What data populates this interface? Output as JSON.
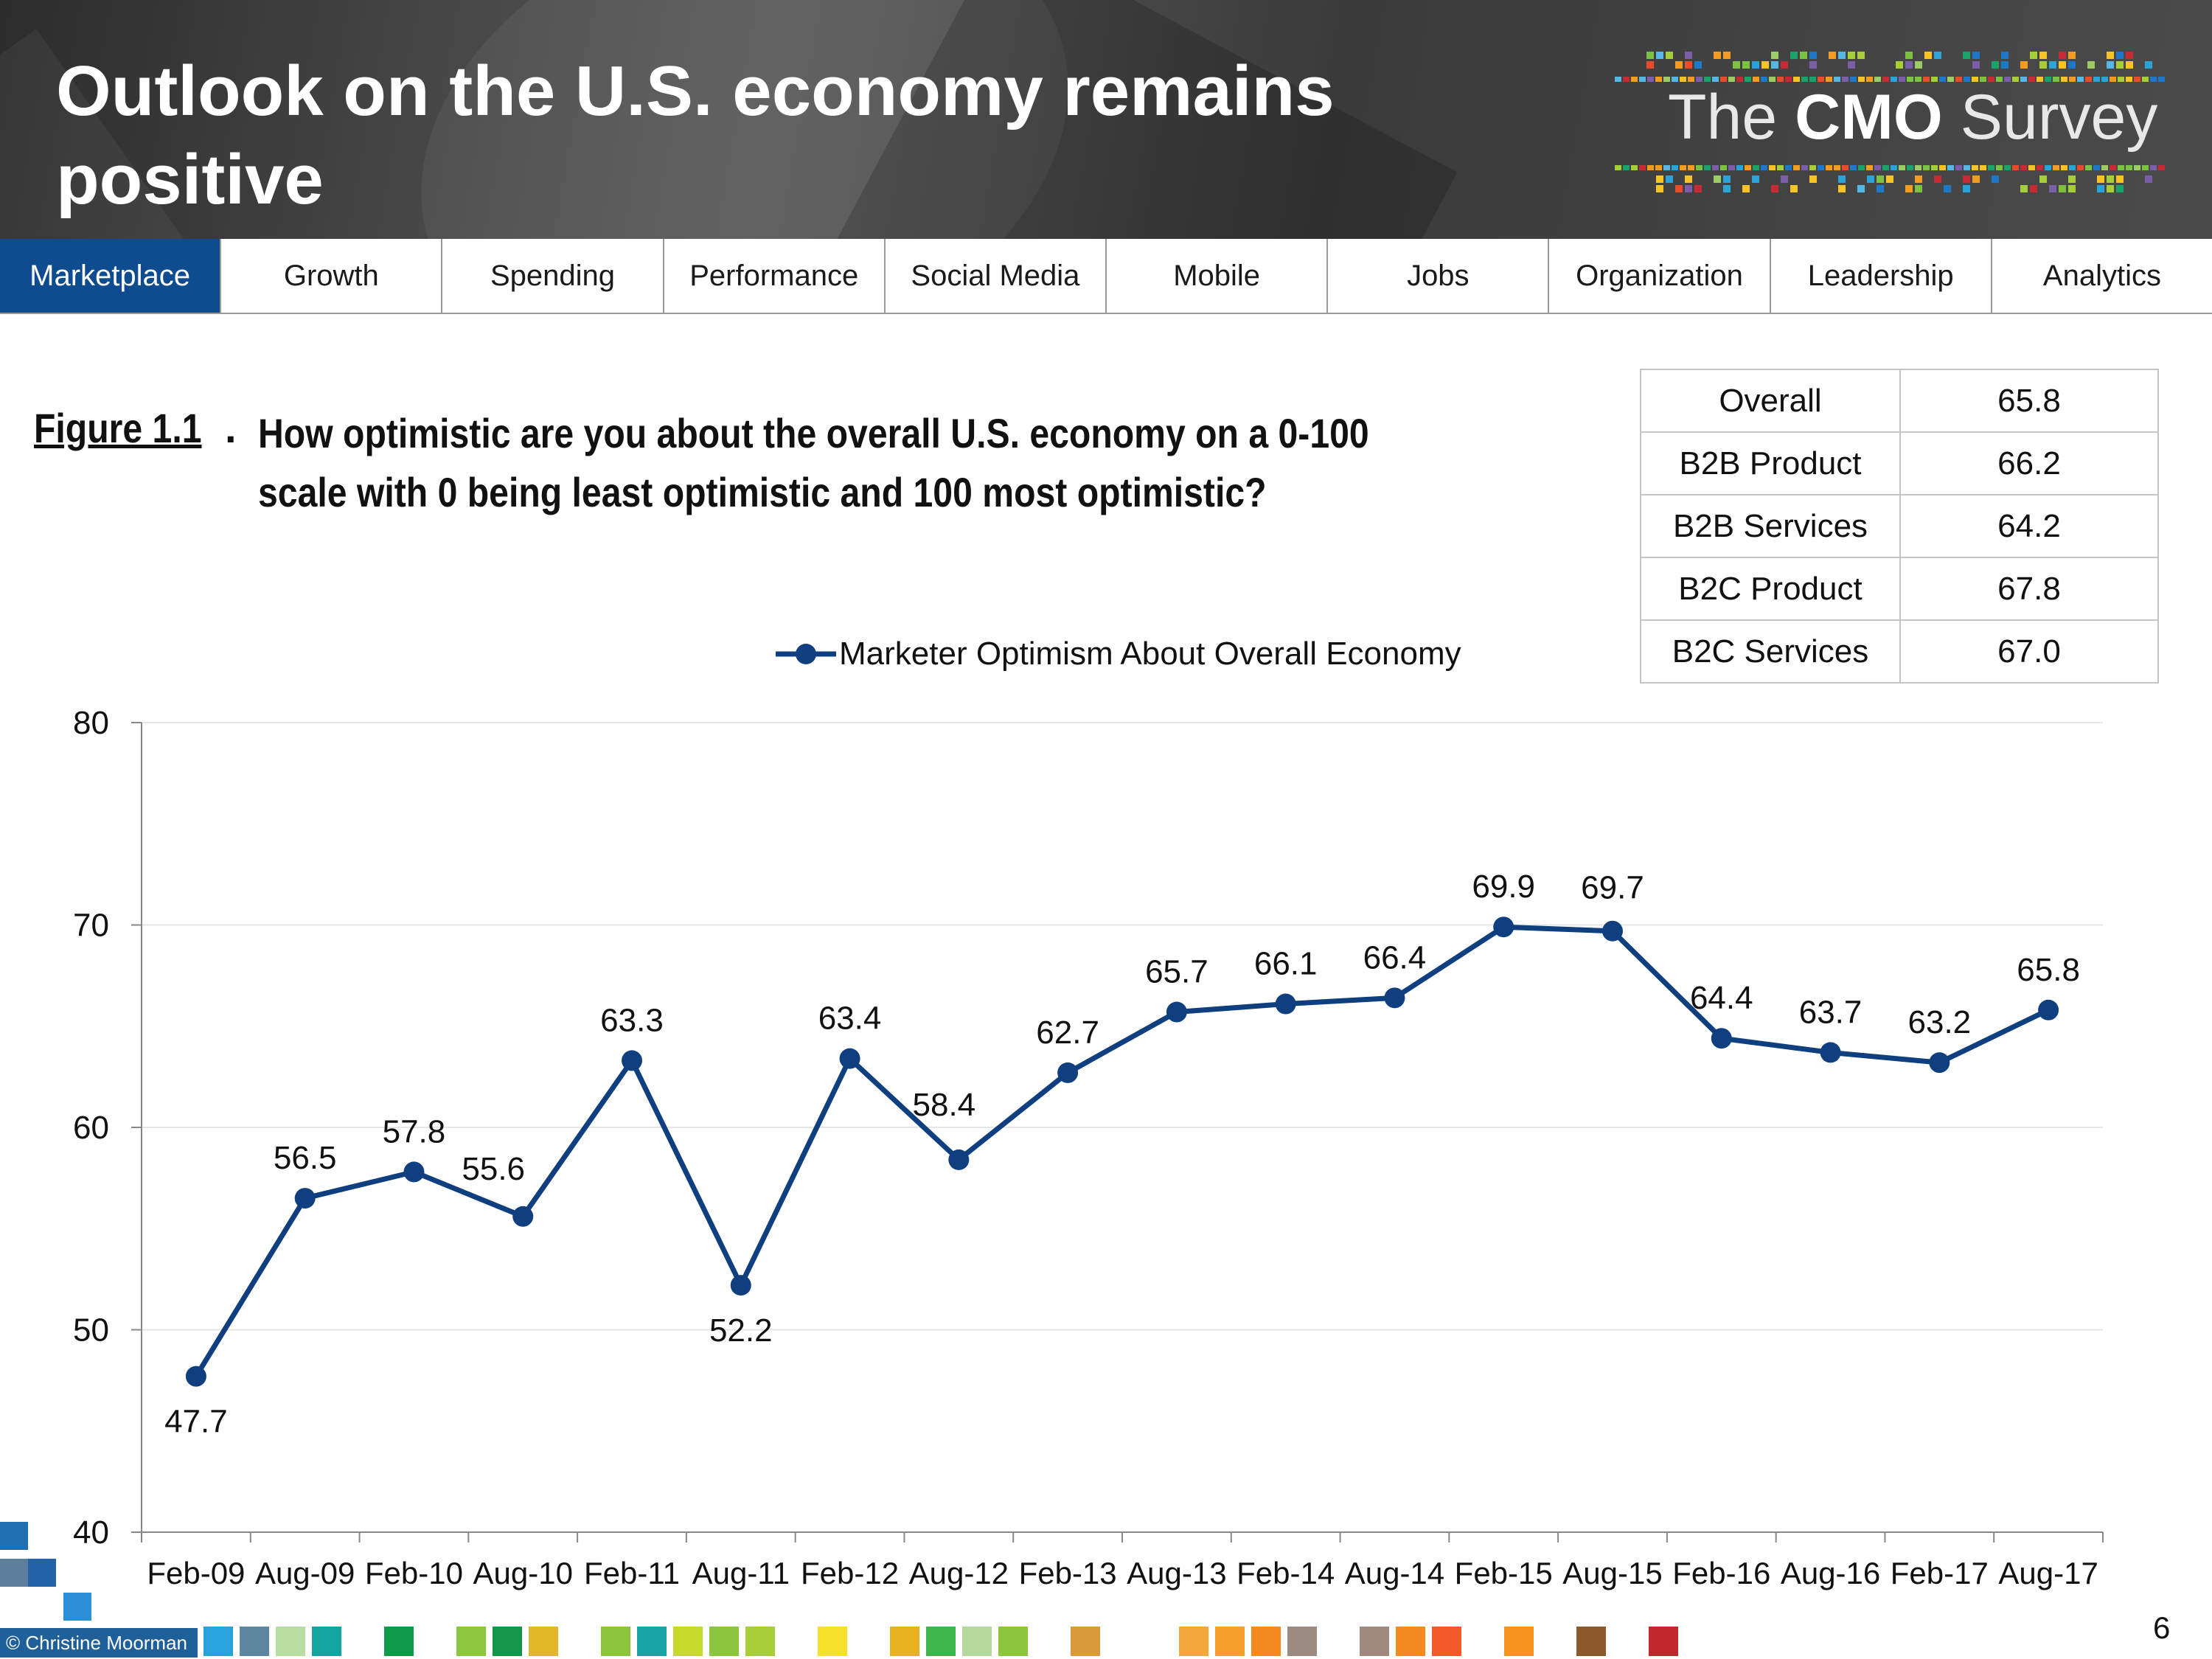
{
  "header": {
    "title": "Outlook on the U.S. economy remains positive",
    "logo_prefix": "The",
    "logo_bold": "CMO",
    "logo_suffix": "Survey"
  },
  "nav": {
    "tabs": [
      "Marketplace",
      "Growth",
      "Spending",
      "Performance",
      "Social Media",
      "Mobile",
      "Jobs",
      "Organization",
      "Leadership",
      "Analytics"
    ],
    "active": "Marketplace"
  },
  "figure": {
    "label": "Figure 1.1",
    "question": "How optimistic are you about the overall U.S. economy on a 0-100 scale with 0 being least optimistic and 100 most optimistic?"
  },
  "segments": [
    {
      "name": "Overall",
      "value": "65.8"
    },
    {
      "name": "B2B Product",
      "value": "66.2"
    },
    {
      "name": "B2B Services",
      "value": "64.2"
    },
    {
      "name": "B2C Product",
      "value": "67.8"
    },
    {
      "name": "B2C Services",
      "value": "67.0"
    }
  ],
  "chart_data": {
    "type": "line",
    "title": "",
    "xlabel": "",
    "ylabel": "",
    "ylim": [
      40,
      80
    ],
    "yticks": [
      40,
      50,
      60,
      70,
      80
    ],
    "legend": "top-center",
    "categories": [
      "Feb-09",
      "Aug-09",
      "Feb-10",
      "Aug-10",
      "Feb-11",
      "Aug-11",
      "Feb-12",
      "Aug-12",
      "Feb-13",
      "Aug-13",
      "Feb-14",
      "Aug-14",
      "Feb-15",
      "Aug-15",
      "Feb-16",
      "Aug-16",
      "Feb-17",
      "Aug-17"
    ],
    "series": [
      {
        "name": "Marketer Optimism About Overall Economy",
        "values": [
          47.7,
          56.5,
          57.8,
          55.6,
          63.3,
          52.2,
          63.4,
          58.4,
          62.7,
          65.7,
          66.1,
          66.4,
          69.9,
          69.7,
          64.4,
          63.7,
          63.2,
          65.8
        ],
        "labels": [
          "47.7",
          "56.5",
          "57.8",
          "55.6",
          "63.3",
          "52.2",
          "63.4",
          "58.4",
          "62.7",
          "65.7",
          "66.1",
          "66.4",
          "69.9",
          "69.7",
          "64.4",
          "63.7",
          "63.2",
          "65.8"
        ]
      }
    ],
    "line_color": "#0f3f7f",
    "grid": true
  },
  "footer": {
    "copyright": "© Christine Moorman",
    "page": "6"
  }
}
